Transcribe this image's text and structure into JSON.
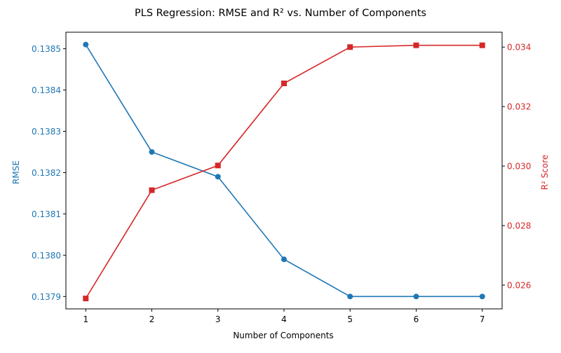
{
  "colors": {
    "rmse": "#1f77b4",
    "r2": "#d62728",
    "axis": "#000000",
    "background": "#ffffff"
  },
  "chart_data": {
    "type": "line",
    "title": "PLS Regression: RMSE and R² vs. Number of Components",
    "xlabel": "Number of Components",
    "x": [
      1,
      2,
      3,
      4,
      5,
      6,
      7
    ],
    "x_tick_labels": [
      "1",
      "2",
      "3",
      "4",
      "5",
      "6",
      "7"
    ],
    "grid": false,
    "legend": "none",
    "series": [
      {
        "name": "RMSE",
        "axis": "left",
        "marker": "circle",
        "values": [
          0.13851,
          0.13825,
          0.13819,
          0.13799,
          0.1379,
          0.1379,
          0.1379
        ]
      },
      {
        "name": "R² Score",
        "axis": "right",
        "marker": "square",
        "values": [
          0.02555,
          0.02919,
          0.03002,
          0.03278,
          0.034,
          0.03406,
          0.03406
        ]
      }
    ],
    "y_left": {
      "label": "RMSE",
      "ylim": [
        0.13787,
        0.13854
      ],
      "ticks": [
        0.1379,
        0.138,
        0.1381,
        0.1382,
        0.1383,
        0.1384,
        0.1385
      ],
      "tick_labels": [
        "0.1379",
        "0.1380",
        "0.1381",
        "0.1382",
        "0.1383",
        "0.1384",
        "0.1385"
      ]
    },
    "y_right": {
      "label": "R² Score",
      "ylim": [
        0.0252,
        0.0345
      ],
      "ticks": [
        0.026,
        0.028,
        0.03,
        0.032,
        0.034
      ],
      "tick_labels": [
        "0.026",
        "0.028",
        "0.030",
        "0.032",
        "0.034"
      ]
    }
  }
}
